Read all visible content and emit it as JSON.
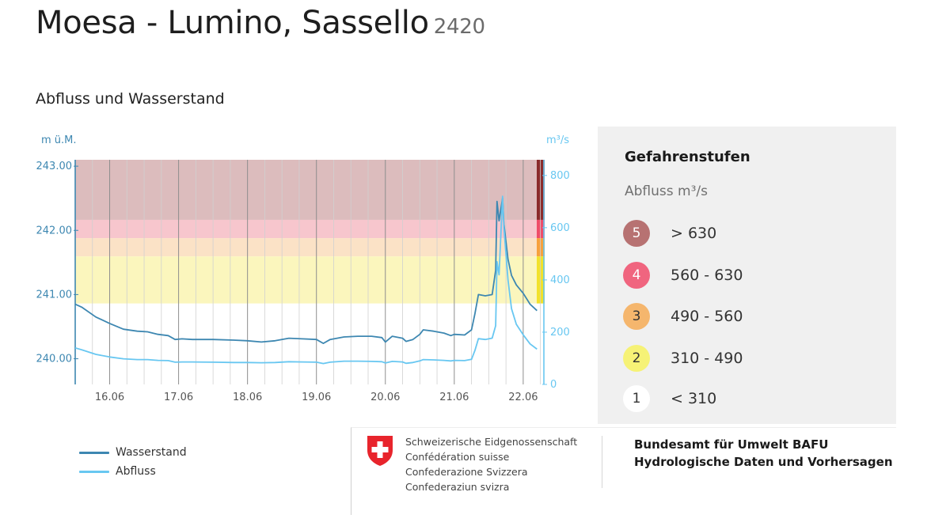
{
  "header": {
    "title": "Moesa - Lumino, Sassello",
    "station_id": "2420"
  },
  "section_title": "Abfluss und Wasserstand",
  "chart_data": {
    "type": "line",
    "title": "Abfluss und Wasserstand",
    "y_left": {
      "label": "m ü.M.",
      "ticks": [
        "243.00",
        "242.00",
        "241.00",
        "240.00"
      ],
      "tick_values": [
        243,
        242,
        241,
        240
      ],
      "range": [
        239.6,
        243.1
      ]
    },
    "y_right": {
      "label": "m³/s",
      "ticks": [
        "800",
        "600",
        "400",
        "200",
        "0"
      ],
      "tick_values": [
        800,
        600,
        400,
        200,
        0
      ],
      "range": [
        0,
        860
      ]
    },
    "x": {
      "ticks": [
        "16.06",
        "17.06",
        "18.06",
        "19.06",
        "20.06",
        "21.06",
        "22.06"
      ],
      "range_days": [
        15.5,
        22.3
      ]
    },
    "grid": true,
    "danger_bands": [
      {
        "level": 5,
        "from": 630,
        "to": 860,
        "color": "#dcbcbd",
        "bar_color": "#8a2a2a"
      },
      {
        "level": 4,
        "from": 560,
        "to": 630,
        "color": "#f7c6cd",
        "bar_color": "#ef4c68"
      },
      {
        "level": 3,
        "from": 490,
        "to": 560,
        "color": "#fbe2c6",
        "bar_color": "#f7a13c"
      },
      {
        "level": 2,
        "from": 310,
        "to": 490,
        "color": "#fbf6bd",
        "bar_color": "#f2e22a"
      }
    ],
    "series": [
      {
        "name": "Wasserstand",
        "axis": "left",
        "color": "#3d87b1",
        "points": [
          [
            15.5,
            240.85
          ],
          [
            15.6,
            240.8
          ],
          [
            15.8,
            240.65
          ],
          [
            16.0,
            240.55
          ],
          [
            16.2,
            240.46
          ],
          [
            16.4,
            240.43
          ],
          [
            16.55,
            240.42
          ],
          [
            16.7,
            240.38
          ],
          [
            16.85,
            240.36
          ],
          [
            16.95,
            240.3
          ],
          [
            17.05,
            240.31
          ],
          [
            17.2,
            240.3
          ],
          [
            17.5,
            240.3
          ],
          [
            17.8,
            240.29
          ],
          [
            18.0,
            240.28
          ],
          [
            18.2,
            240.26
          ],
          [
            18.4,
            240.28
          ],
          [
            18.6,
            240.32
          ],
          [
            18.8,
            240.31
          ],
          [
            19.0,
            240.3
          ],
          [
            19.1,
            240.24
          ],
          [
            19.2,
            240.3
          ],
          [
            19.4,
            240.34
          ],
          [
            19.6,
            240.35
          ],
          [
            19.8,
            240.35
          ],
          [
            19.95,
            240.33
          ],
          [
            20.0,
            240.26
          ],
          [
            20.1,
            240.35
          ],
          [
            20.25,
            240.32
          ],
          [
            20.3,
            240.27
          ],
          [
            20.4,
            240.3
          ],
          [
            20.5,
            240.38
          ],
          [
            20.55,
            240.45
          ],
          [
            20.7,
            240.43
          ],
          [
            20.85,
            240.4
          ],
          [
            20.95,
            240.36
          ],
          [
            21.0,
            240.38
          ],
          [
            21.15,
            240.37
          ],
          [
            21.25,
            240.45
          ],
          [
            21.3,
            240.7
          ],
          [
            21.35,
            241.0
          ],
          [
            21.45,
            240.98
          ],
          [
            21.55,
            241.0
          ],
          [
            21.6,
            241.38
          ],
          [
            21.62,
            242.45
          ],
          [
            21.65,
            242.15
          ],
          [
            21.7,
            242.5
          ],
          [
            21.72,
            242.1
          ],
          [
            21.78,
            241.55
          ],
          [
            21.83,
            241.3
          ],
          [
            21.9,
            241.15
          ],
          [
            22.0,
            241.02
          ],
          [
            22.1,
            240.85
          ],
          [
            22.2,
            240.75
          ]
        ]
      },
      {
        "name": "Abfluss",
        "axis": "right",
        "color": "#68c7f1",
        "points": [
          [
            15.5,
            140
          ],
          [
            15.6,
            132
          ],
          [
            15.8,
            115
          ],
          [
            16.0,
            105
          ],
          [
            16.2,
            98
          ],
          [
            16.4,
            95
          ],
          [
            16.55,
            95
          ],
          [
            16.7,
            92
          ],
          [
            16.85,
            91
          ],
          [
            16.95,
            85
          ],
          [
            17.05,
            86
          ],
          [
            17.2,
            86
          ],
          [
            17.5,
            85
          ],
          [
            17.8,
            84
          ],
          [
            18.0,
            84
          ],
          [
            18.2,
            83
          ],
          [
            18.4,
            84
          ],
          [
            18.6,
            87
          ],
          [
            18.8,
            86
          ],
          [
            19.0,
            85
          ],
          [
            19.1,
            80
          ],
          [
            19.2,
            85
          ],
          [
            19.4,
            89
          ],
          [
            19.6,
            89
          ],
          [
            19.8,
            88
          ],
          [
            19.95,
            87
          ],
          [
            20.0,
            82
          ],
          [
            20.1,
            88
          ],
          [
            20.25,
            86
          ],
          [
            20.3,
            81
          ],
          [
            20.4,
            84
          ],
          [
            20.5,
            90
          ],
          [
            20.55,
            95
          ],
          [
            20.7,
            94
          ],
          [
            20.85,
            92
          ],
          [
            20.95,
            90
          ],
          [
            21.0,
            92
          ],
          [
            21.15,
            91
          ],
          [
            21.25,
            96
          ],
          [
            21.3,
            130
          ],
          [
            21.35,
            175
          ],
          [
            21.45,
            172
          ],
          [
            21.55,
            177
          ],
          [
            21.6,
            225
          ],
          [
            21.62,
            470
          ],
          [
            21.65,
            420
          ],
          [
            21.7,
            720
          ],
          [
            21.72,
            600
          ],
          [
            21.78,
            400
          ],
          [
            21.83,
            290
          ],
          [
            21.9,
            230
          ],
          [
            22.0,
            190
          ],
          [
            22.1,
            155
          ],
          [
            22.2,
            135
          ]
        ]
      }
    ]
  },
  "legend": [
    {
      "label": "Wasserstand",
      "color": "#3d87b1"
    },
    {
      "label": "Abfluss",
      "color": "#68c7f1"
    }
  ],
  "danger_panel": {
    "title": "Gefahrenstufen",
    "subtitle": "Abfluss m³/s",
    "levels": [
      {
        "num": "5",
        "range": "> 630",
        "color": "#b77272",
        "text_color": "#ffffff"
      },
      {
        "num": "4",
        "range": "560 - 630",
        "color": "#f0657f",
        "text_color": "#ffffff"
      },
      {
        "num": "3",
        "range": "490 - 560",
        "color": "#f5b66d",
        "text_color": "#333333"
      },
      {
        "num": "2",
        "range": "310 - 490",
        "color": "#f6f276",
        "text_color": "#333333"
      },
      {
        "num": "1",
        "range": "< 310",
        "color": "#ffffff",
        "text_color": "#333333"
      }
    ]
  },
  "footer": {
    "federation": [
      "Schweizerische Eidgenossenschaft",
      "Confédération suisse",
      "Confederazione Svizzera",
      "Confederaziun svizra"
    ],
    "office": [
      "Bundesamt für Umwelt BAFU",
      "Hydrologische Daten und Vorhersagen"
    ]
  }
}
